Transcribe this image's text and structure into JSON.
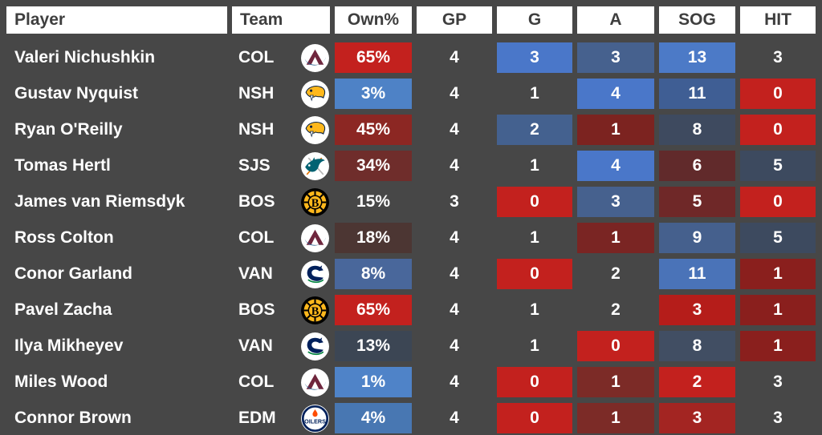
{
  "colors": {
    "page_background": "#474747",
    "header_background": "#FFFFFF",
    "header_text": "#3E3E3E",
    "cell_text": "#FFFFFF"
  },
  "chart_data": {
    "type": "table",
    "columns": [
      "Player",
      "Team",
      "Own%",
      "GP",
      "G",
      "A",
      "SOG",
      "HIT"
    ],
    "rows": [
      {
        "player": "Valeri Nichushkin",
        "team": "COL",
        "team_logo": "colorado-avalanche-logo-icon",
        "cells": {
          "own": {
            "value": "65%",
            "bg": "#C3211E"
          },
          "gp": {
            "value": "4",
            "bg": ""
          },
          "g": {
            "value": "3",
            "bg": "#4A77C9"
          },
          "a": {
            "value": "3",
            "bg": "#46618E"
          },
          "sog": {
            "value": "13",
            "bg": "#4C7AC7"
          },
          "hit": {
            "value": "3",
            "bg": ""
          }
        }
      },
      {
        "player": "Gustav Nyquist",
        "team": "NSH",
        "team_logo": "nashville-predators-logo-icon",
        "cells": {
          "own": {
            "value": "3%",
            "bg": "#4E82C6"
          },
          "gp": {
            "value": "4",
            "bg": ""
          },
          "g": {
            "value": "1",
            "bg": ""
          },
          "a": {
            "value": "4",
            "bg": "#4A77C9"
          },
          "sog": {
            "value": "11",
            "bg": "#3F5E94"
          },
          "hit": {
            "value": "0",
            "bg": "#C3211E"
          }
        }
      },
      {
        "player": "Ryan O'Reilly",
        "team": "NSH",
        "team_logo": "nashville-predators-logo-icon",
        "cells": {
          "own": {
            "value": "45%",
            "bg": "#8C2723"
          },
          "gp": {
            "value": "4",
            "bg": ""
          },
          "g": {
            "value": "2",
            "bg": "#44618F"
          },
          "a": {
            "value": "1",
            "bg": "#7C2320"
          },
          "sog": {
            "value": "8",
            "bg": "#3E4A5F"
          },
          "hit": {
            "value": "0",
            "bg": "#C3211E"
          }
        }
      },
      {
        "player": "Tomas Hertl",
        "team": "SJS",
        "team_logo": "san-jose-sharks-logo-icon",
        "cells": {
          "own": {
            "value": "34%",
            "bg": "#6F2D2B"
          },
          "gp": {
            "value": "4",
            "bg": ""
          },
          "g": {
            "value": "1",
            "bg": ""
          },
          "a": {
            "value": "4",
            "bg": "#4A77C9"
          },
          "sog": {
            "value": "6",
            "bg": "#612A2B"
          },
          "hit": {
            "value": "5",
            "bg": "#3D4A5F"
          }
        }
      },
      {
        "player": "James van Riemsdyk",
        "team": "BOS",
        "team_logo": "boston-bruins-logo-icon",
        "cells": {
          "own": {
            "value": "15%",
            "bg": ""
          },
          "gp": {
            "value": "3",
            "bg": ""
          },
          "g": {
            "value": "0",
            "bg": "#C3211E"
          },
          "a": {
            "value": "3",
            "bg": "#46618E"
          },
          "sog": {
            "value": "5",
            "bg": "#6F2828"
          },
          "hit": {
            "value": "0",
            "bg": "#C3211E"
          }
        }
      },
      {
        "player": "Ross Colton",
        "team": "COL",
        "team_logo": "colorado-avalanche-logo-icon",
        "cells": {
          "own": {
            "value": "18%",
            "bg": "#4C3633"
          },
          "gp": {
            "value": "4",
            "bg": ""
          },
          "g": {
            "value": "1",
            "bg": ""
          },
          "a": {
            "value": "1",
            "bg": "#7A2523"
          },
          "sog": {
            "value": "9",
            "bg": "#45608D"
          },
          "hit": {
            "value": "5",
            "bg": "#3D4A5F"
          }
        }
      },
      {
        "player": "Conor Garland",
        "team": "VAN",
        "team_logo": "vancouver-canucks-logo-icon",
        "cells": {
          "own": {
            "value": "8%",
            "bg": "#49679B"
          },
          "gp": {
            "value": "4",
            "bg": ""
          },
          "g": {
            "value": "0",
            "bg": "#C3211E"
          },
          "a": {
            "value": "2",
            "bg": ""
          },
          "sog": {
            "value": "11",
            "bg": "#4A73B8"
          },
          "hit": {
            "value": "1",
            "bg": "#8A1F1D"
          }
        }
      },
      {
        "player": "Pavel Zacha",
        "team": "BOS",
        "team_logo": "boston-bruins-logo-icon",
        "cells": {
          "own": {
            "value": "65%",
            "bg": "#C3211E"
          },
          "gp": {
            "value": "4",
            "bg": ""
          },
          "g": {
            "value": "1",
            "bg": ""
          },
          "a": {
            "value": "2",
            "bg": ""
          },
          "sog": {
            "value": "3",
            "bg": "#B51D1A"
          },
          "hit": {
            "value": "1",
            "bg": "#8A1F1D"
          }
        }
      },
      {
        "player": "Ilya Mikheyev",
        "team": "VAN",
        "team_logo": "vancouver-canucks-logo-icon",
        "cells": {
          "own": {
            "value": "13%",
            "bg": "#3C4654"
          },
          "gp": {
            "value": "4",
            "bg": ""
          },
          "g": {
            "value": "1",
            "bg": ""
          },
          "a": {
            "value": "0",
            "bg": "#C3211E"
          },
          "sog": {
            "value": "8",
            "bg": "#414E63"
          },
          "hit": {
            "value": "1",
            "bg": "#8A1F1D"
          }
        }
      },
      {
        "player": "Miles Wood",
        "team": "COL",
        "team_logo": "colorado-avalanche-logo-icon",
        "cells": {
          "own": {
            "value": "1%",
            "bg": "#4F83C8"
          },
          "gp": {
            "value": "4",
            "bg": ""
          },
          "g": {
            "value": "0",
            "bg": "#C3211E"
          },
          "a": {
            "value": "1",
            "bg": "#7C2B27"
          },
          "sog": {
            "value": "2",
            "bg": "#C3211E"
          },
          "hit": {
            "value": "3",
            "bg": ""
          }
        }
      },
      {
        "player": "Connor Brown",
        "team": "EDM",
        "team_logo": "edmonton-oilers-logo-icon",
        "cells": {
          "own": {
            "value": "4%",
            "bg": "#4877B2"
          },
          "gp": {
            "value": "4",
            "bg": ""
          },
          "g": {
            "value": "0",
            "bg": "#C3211E"
          },
          "a": {
            "value": "1",
            "bg": "#7C2B27"
          },
          "sog": {
            "value": "3",
            "bg": "#A32522"
          },
          "hit": {
            "value": "3",
            "bg": ""
          }
        }
      }
    ]
  }
}
